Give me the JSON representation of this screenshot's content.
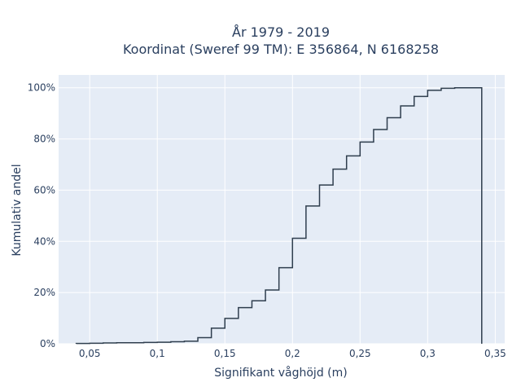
{
  "chart_data": {
    "type": "line",
    "subtype": "cumulative-step-histogram",
    "title_line1": "År 1979 - 2019",
    "title_line2": "Koordinat (Sweref 99 TM): E 356864, N 6168258",
    "xlabel": "Signifikant våghöjd (m)",
    "ylabel": "Kumulativ andel",
    "xlim": [
      0.027,
      0.357
    ],
    "ylim": [
      0,
      1.05
    ],
    "x_ticks": [
      0.05,
      0.1,
      0.15,
      0.2,
      0.25,
      0.3,
      0.35
    ],
    "x_tick_labels": [
      "0,05",
      "0,1",
      "0,15",
      "0,2",
      "0,25",
      "0,3",
      "0,35"
    ],
    "y_ticks": [
      0,
      0.2,
      0.4,
      0.6,
      0.8,
      1.0
    ],
    "y_tick_labels": [
      "0%",
      "20%",
      "40%",
      "60%",
      "80%",
      "100%"
    ],
    "grid": true,
    "colors": {
      "plot_background": "#e5ecf6",
      "grid": "#ffffff",
      "line": "#2f3e4e"
    },
    "bins": {
      "edges": [
        0.04,
        0.05,
        0.06,
        0.07,
        0.08,
        0.09,
        0.1,
        0.11,
        0.12,
        0.13,
        0.14,
        0.15,
        0.16,
        0.17,
        0.18,
        0.19,
        0.2,
        0.21,
        0.22,
        0.23,
        0.24,
        0.25,
        0.26,
        0.27,
        0.28,
        0.29,
        0.3,
        0.31,
        0.32,
        0.33,
        0.34
      ],
      "cumulative": [
        0.001,
        0.002,
        0.003,
        0.004,
        0.004,
        0.005,
        0.006,
        0.008,
        0.01,
        0.024,
        0.061,
        0.099,
        0.141,
        0.168,
        0.21,
        0.297,
        0.412,
        0.538,
        0.62,
        0.682,
        0.734,
        0.788,
        0.837,
        0.883,
        0.929,
        0.966,
        0.99,
        0.998,
        1.0,
        1.0
      ]
    }
  }
}
